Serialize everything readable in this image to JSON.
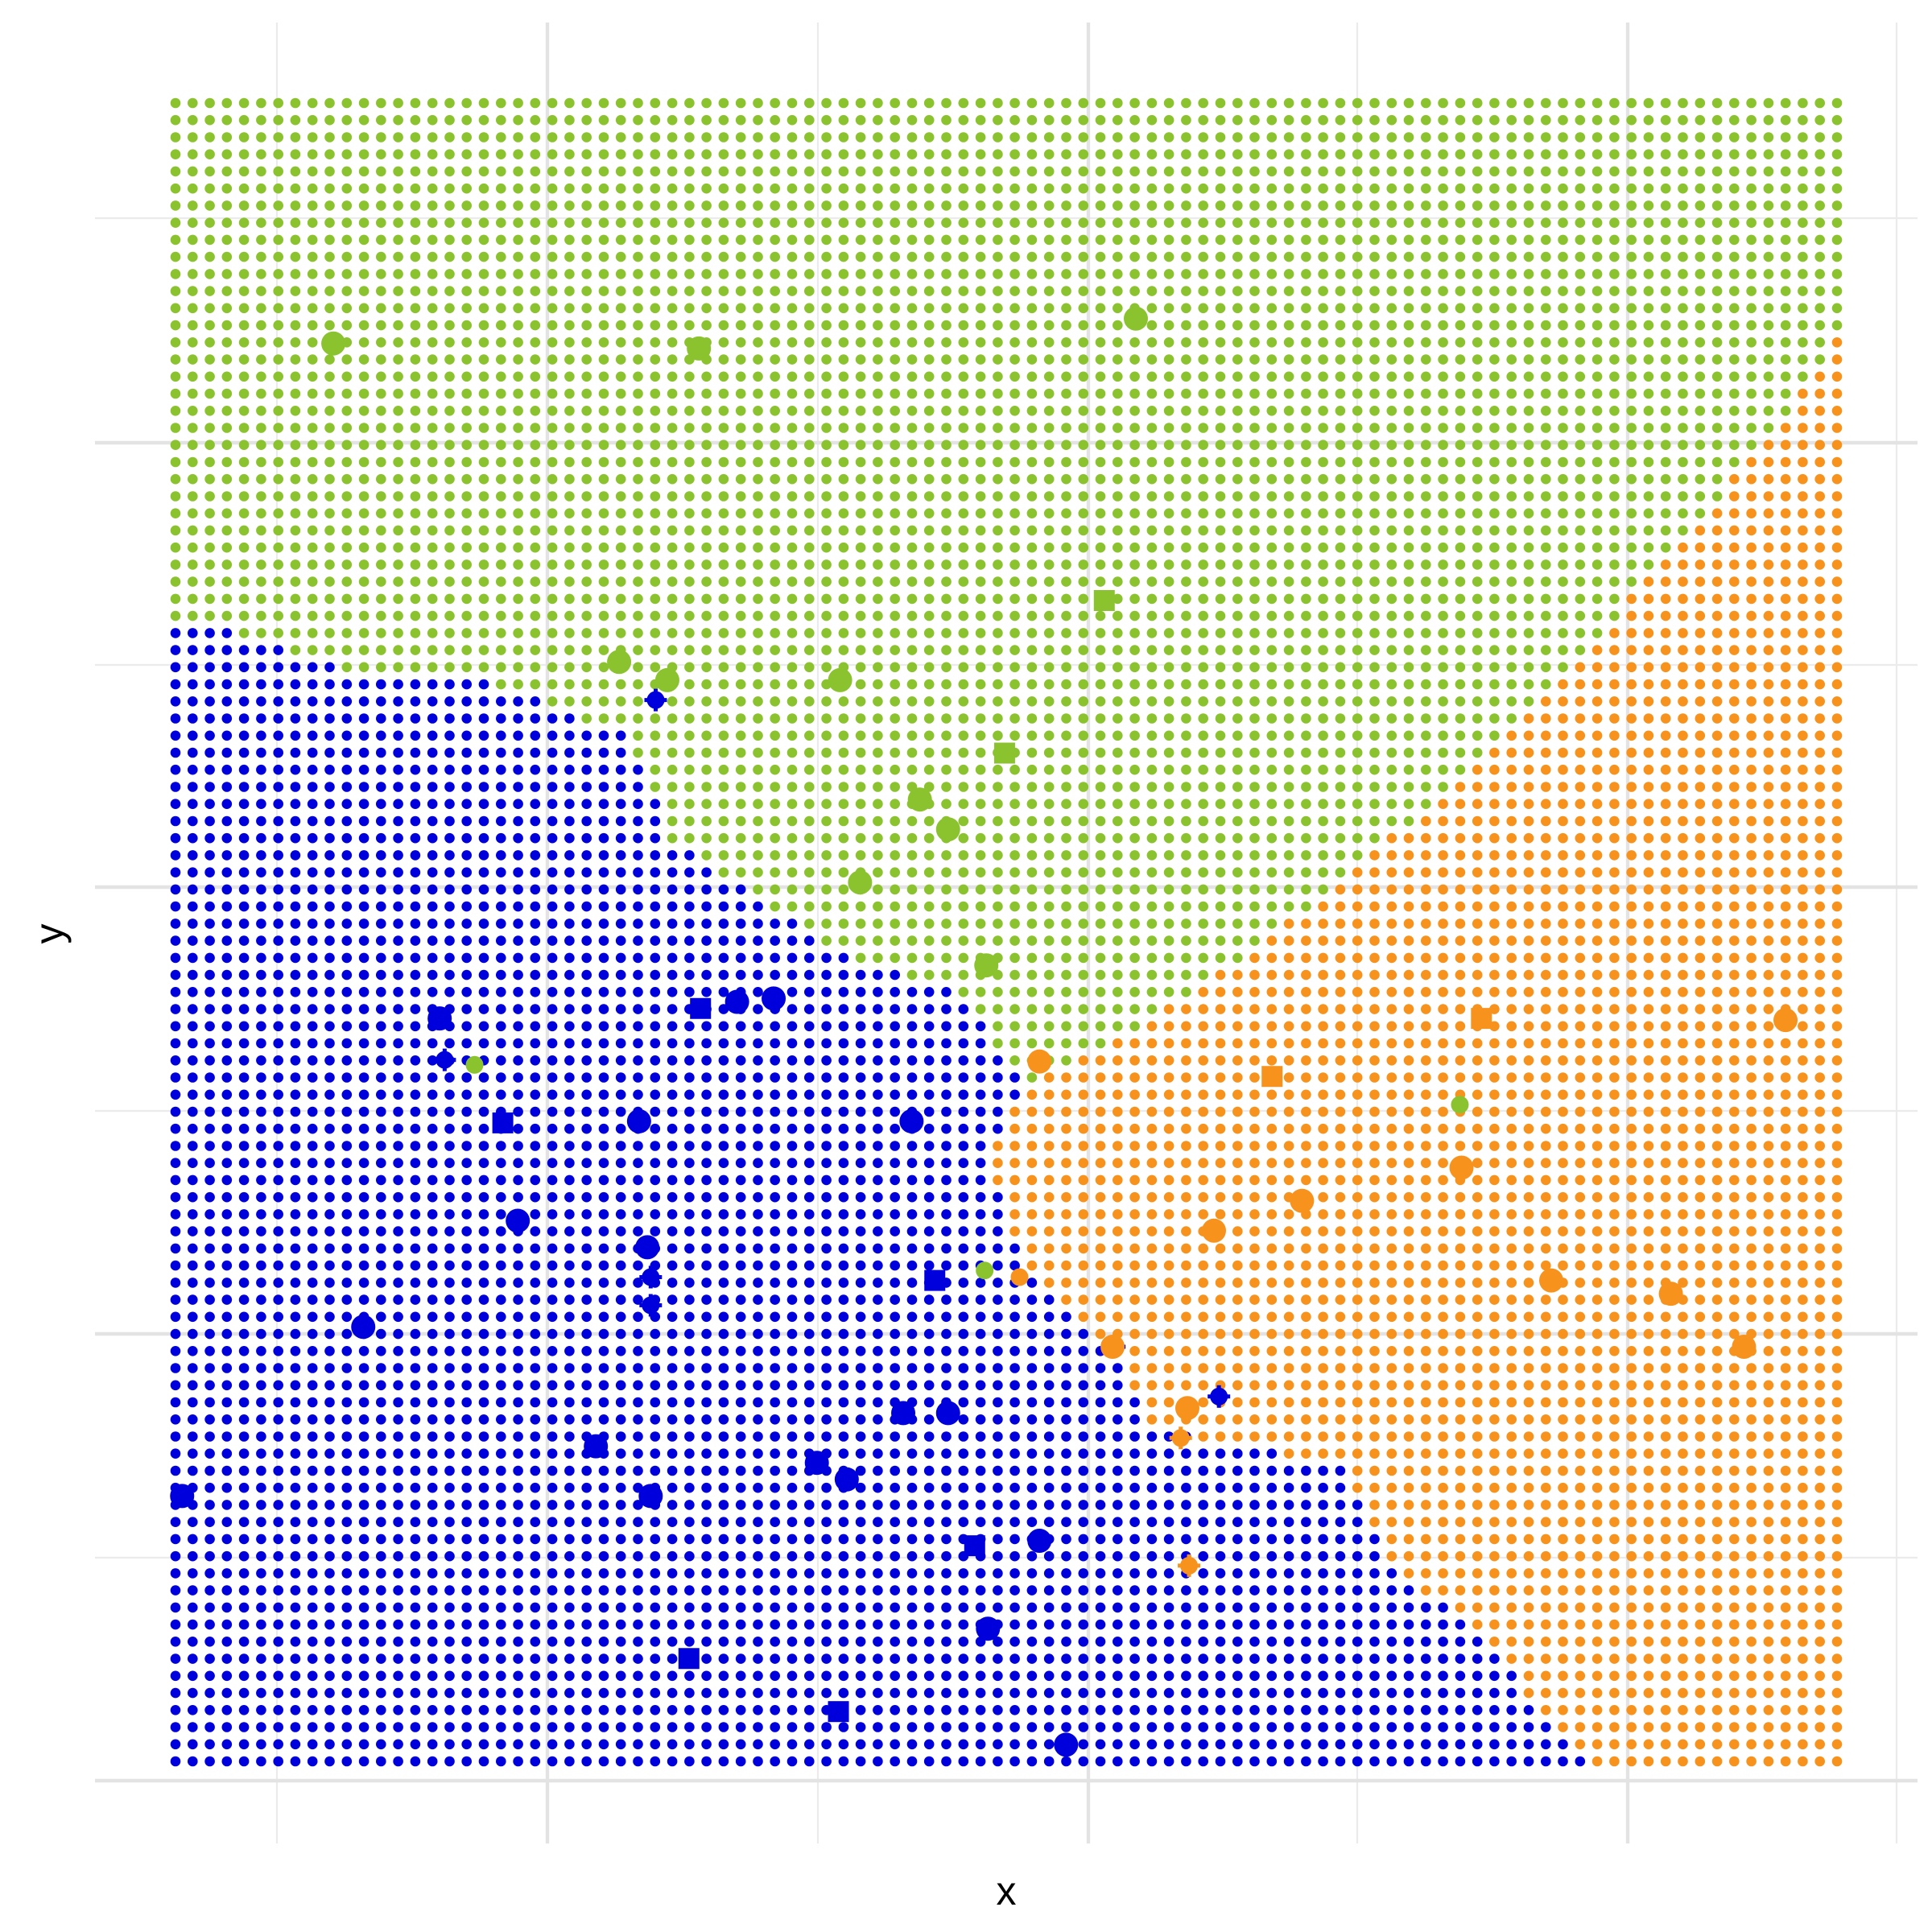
{
  "chart_data": {
    "type": "scatter",
    "title": "",
    "xlabel": "x",
    "ylabel": "y",
    "grid": true,
    "legend": "none",
    "tick_labels_visible": false,
    "xlim": [
      0,
      1
    ],
    "ylim": [
      0,
      1
    ],
    "class_colors": {
      "blue": "#0000dd",
      "green": "#8bc32f",
      "orange": "#f7931d"
    },
    "decision_regions": {
      "grid_columns": 98,
      "grid_rows": 98,
      "boundaries": [
        {
          "name": "blue-green",
          "points": [
            [
              0,
              0.686
            ],
            [
              0.05,
              0.677
            ],
            [
              0.12,
              0.651
            ],
            [
              0.19,
              0.65
            ],
            [
              0.27,
              0.62
            ],
            [
              0.29,
              0.577
            ],
            [
              0.3,
              0.553
            ],
            [
              0.4,
              0.488
            ],
            [
              0.47,
              0.463
            ],
            [
              0.5,
              0.425
            ],
            [
              0.51,
              0.41
            ]
          ]
        },
        {
          "name": "green-orange",
          "points": [
            [
              0.51,
              0.41
            ],
            [
              0.56,
              0.43
            ],
            [
              0.62,
              0.47
            ],
            [
              0.7,
              0.53
            ],
            [
              0.78,
              0.6
            ],
            [
              0.84,
              0.66
            ],
            [
              0.9,
              0.73
            ],
            [
              0.96,
              0.8
            ],
            [
              1.0,
              0.86
            ]
          ]
        },
        {
          "name": "blue-orange",
          "points": [
            [
              0.51,
              0.41
            ],
            [
              0.49,
              0.36
            ],
            [
              0.5,
              0.32
            ],
            [
              0.52,
              0.29
            ],
            [
              0.56,
              0.25
            ],
            [
              0.59,
              0.2
            ],
            [
              0.7,
              0.18
            ],
            [
              0.73,
              0.12
            ],
            [
              0.78,
              0.08
            ],
            [
              0.85,
              0.0
            ]
          ]
        }
      ]
    },
    "points": [
      {
        "x": 0.095,
        "y": 0.855,
        "class": "green",
        "marker": "circle"
      },
      {
        "x": 0.315,
        "y": 0.852,
        "class": "green",
        "marker": "circle"
      },
      {
        "x": 0.578,
        "y": 0.87,
        "class": "green",
        "marker": "circle"
      },
      {
        "x": 0.559,
        "y": 0.7,
        "class": "green",
        "marker": "square"
      },
      {
        "x": 0.267,
        "y": 0.663,
        "class": "green",
        "marker": "circle"
      },
      {
        "x": 0.296,
        "y": 0.652,
        "class": "green",
        "marker": "circle"
      },
      {
        "x": 0.4,
        "y": 0.652,
        "class": "green",
        "marker": "circle"
      },
      {
        "x": 0.499,
        "y": 0.608,
        "class": "green",
        "marker": "square"
      },
      {
        "x": 0.448,
        "y": 0.58,
        "class": "green",
        "marker": "circle"
      },
      {
        "x": 0.465,
        "y": 0.562,
        "class": "green",
        "marker": "circle"
      },
      {
        "x": 0.412,
        "y": 0.53,
        "class": "green",
        "marker": "circle"
      },
      {
        "x": 0.488,
        "y": 0.48,
        "class": "green",
        "marker": "circle"
      },
      {
        "x": 0.289,
        "y": 0.64,
        "class": "blue",
        "marker": "cross"
      },
      {
        "x": 0.159,
        "y": 0.448,
        "class": "blue",
        "marker": "circle"
      },
      {
        "x": 0.162,
        "y": 0.423,
        "class": "blue",
        "marker": "cross"
      },
      {
        "x": 0.18,
        "y": 0.42,
        "class": "green",
        "marker": "small"
      },
      {
        "x": 0.316,
        "y": 0.454,
        "class": "blue",
        "marker": "square"
      },
      {
        "x": 0.338,
        "y": 0.458,
        "class": "blue",
        "marker": "circle"
      },
      {
        "x": 0.36,
        "y": 0.46,
        "class": "blue",
        "marker": "circle"
      },
      {
        "x": 0.197,
        "y": 0.385,
        "class": "blue",
        "marker": "square"
      },
      {
        "x": 0.279,
        "y": 0.386,
        "class": "blue",
        "marker": "circle"
      },
      {
        "x": 0.443,
        "y": 0.386,
        "class": "blue",
        "marker": "circle"
      },
      {
        "x": 0.206,
        "y": 0.326,
        "class": "blue",
        "marker": "circle"
      },
      {
        "x": 0.284,
        "y": 0.31,
        "class": "blue",
        "marker": "circle"
      },
      {
        "x": 0.286,
        "y": 0.292,
        "class": "blue",
        "marker": "cross"
      },
      {
        "x": 0.286,
        "y": 0.275,
        "class": "blue",
        "marker": "cross"
      },
      {
        "x": 0.457,
        "y": 0.29,
        "class": "blue",
        "marker": "square"
      },
      {
        "x": 0.113,
        "y": 0.262,
        "class": "blue",
        "marker": "circle"
      },
      {
        "x": 0.438,
        "y": 0.21,
        "class": "blue",
        "marker": "circle"
      },
      {
        "x": 0.465,
        "y": 0.21,
        "class": "blue",
        "marker": "circle"
      },
      {
        "x": 0.253,
        "y": 0.19,
        "class": "blue",
        "marker": "circle"
      },
      {
        "x": 0.386,
        "y": 0.18,
        "class": "blue",
        "marker": "circle"
      },
      {
        "x": 0.404,
        "y": 0.17,
        "class": "blue",
        "marker": "circle"
      },
      {
        "x": 0.004,
        "y": 0.16,
        "class": "blue",
        "marker": "circle"
      },
      {
        "x": 0.286,
        "y": 0.16,
        "class": "blue",
        "marker": "circle"
      },
      {
        "x": 0.481,
        "y": 0.13,
        "class": "blue",
        "marker": "square"
      },
      {
        "x": 0.52,
        "y": 0.133,
        "class": "blue",
        "marker": "circle"
      },
      {
        "x": 0.489,
        "y": 0.08,
        "class": "blue",
        "marker": "circle"
      },
      {
        "x": 0.309,
        "y": 0.062,
        "class": "blue",
        "marker": "square"
      },
      {
        "x": 0.399,
        "y": 0.03,
        "class": "blue",
        "marker": "square"
      },
      {
        "x": 0.536,
        "y": 0.01,
        "class": "blue",
        "marker": "circle"
      },
      {
        "x": 0.487,
        "y": 0.296,
        "class": "green",
        "marker": "small"
      },
      {
        "x": 0.508,
        "y": 0.292,
        "class": "orange",
        "marker": "small"
      },
      {
        "x": 0.565,
        "y": 0.25,
        "class": "blue",
        "marker": "cross"
      },
      {
        "x": 0.628,
        "y": 0.22,
        "class": "blue",
        "marker": "cross"
      },
      {
        "x": 0.52,
        "y": 0.422,
        "class": "orange",
        "marker": "circle"
      },
      {
        "x": 0.66,
        "y": 0.413,
        "class": "orange",
        "marker": "square"
      },
      {
        "x": 0.786,
        "y": 0.448,
        "class": "orange",
        "marker": "square"
      },
      {
        "x": 0.969,
        "y": 0.447,
        "class": "orange",
        "marker": "circle"
      },
      {
        "x": 0.773,
        "y": 0.396,
        "class": "green",
        "marker": "small"
      },
      {
        "x": 0.774,
        "y": 0.358,
        "class": "orange",
        "marker": "circle"
      },
      {
        "x": 0.678,
        "y": 0.338,
        "class": "orange",
        "marker": "circle"
      },
      {
        "x": 0.625,
        "y": 0.32,
        "class": "orange",
        "marker": "circle"
      },
      {
        "x": 0.828,
        "y": 0.29,
        "class": "orange",
        "marker": "circle"
      },
      {
        "x": 0.9,
        "y": 0.282,
        "class": "orange",
        "marker": "circle"
      },
      {
        "x": 0.944,
        "y": 0.25,
        "class": "orange",
        "marker": "circle"
      },
      {
        "x": 0.564,
        "y": 0.25,
        "class": "orange",
        "marker": "circle"
      },
      {
        "x": 0.609,
        "y": 0.213,
        "class": "orange",
        "marker": "circle"
      },
      {
        "x": 0.605,
        "y": 0.195,
        "class": "orange",
        "marker": "cross"
      },
      {
        "x": 0.61,
        "y": 0.118,
        "class": "orange",
        "marker": "cross"
      }
    ]
  }
}
